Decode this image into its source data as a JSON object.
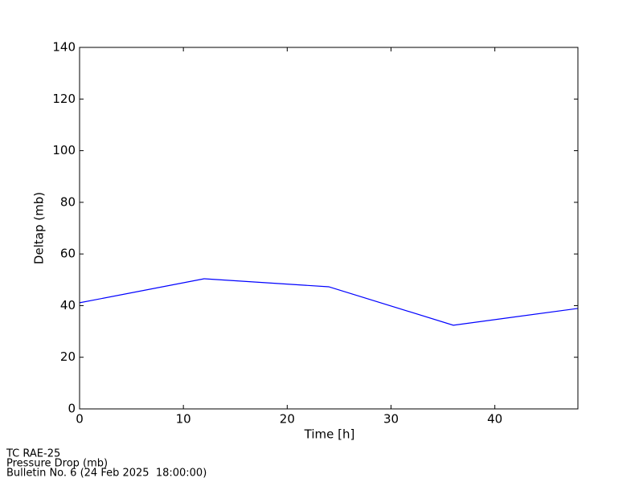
{
  "chart_data": {
    "type": "line",
    "x_label": "Time [h]",
    "y_label": "Deltap (mb)",
    "x": [
      0,
      12,
      24,
      36,
      48
    ],
    "series": [
      {
        "name": "Deltap",
        "color": "#0000ff",
        "values": [
          41.1,
          50.4,
          47.3,
          32.4,
          38.9
        ]
      }
    ],
    "xlim": [
      0,
      48
    ],
    "xticks": [
      0,
      10,
      20,
      30,
      40
    ],
    "ylim": [
      0,
      140
    ],
    "yticks": [
      0,
      20,
      40,
      60,
      80,
      100,
      120,
      140
    ],
    "grid": false,
    "annotations": [
      "TC RAE-25",
      "Pressure Drop (mb)",
      "Bulletin No. 6 (24 Feb 2025  18:00:00)"
    ]
  }
}
